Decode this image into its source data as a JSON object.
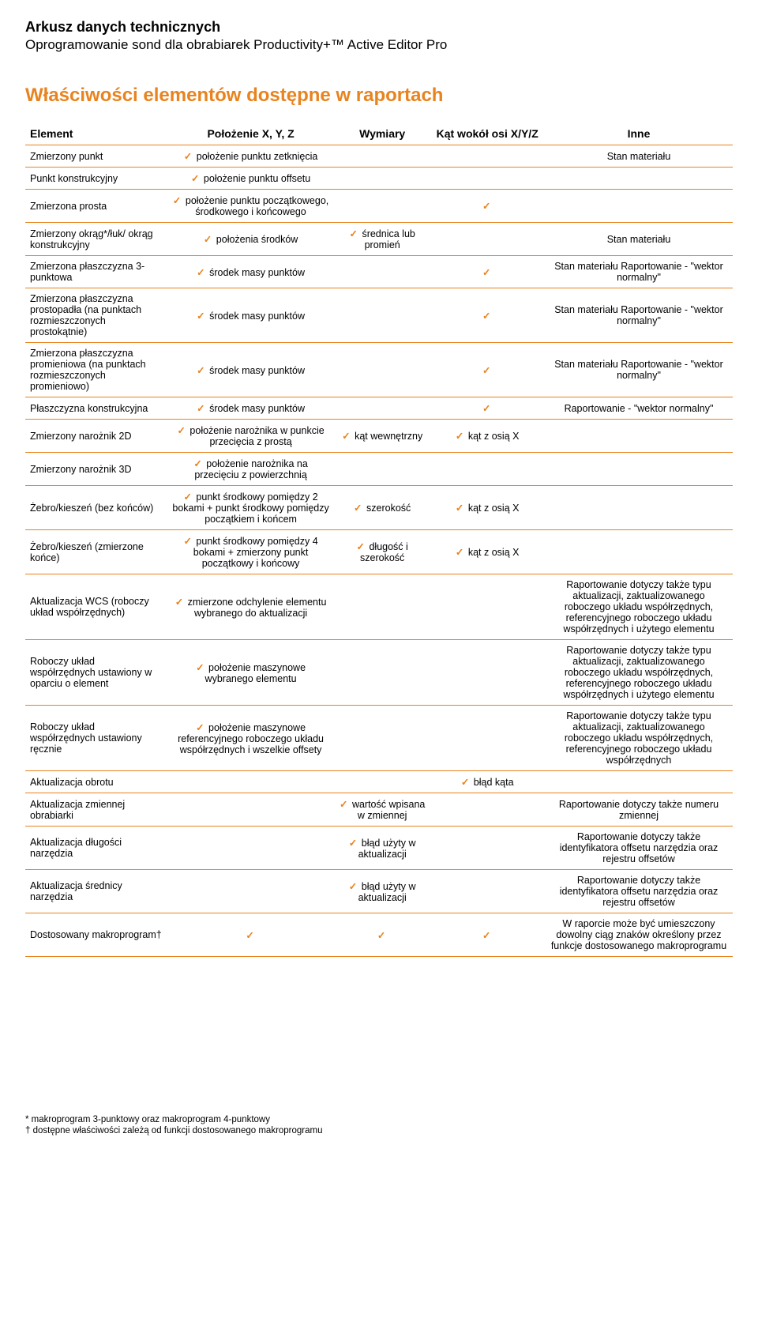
{
  "header": {
    "title": "Arkusz danych technicznych",
    "subtitle": "Oprogramowanie sond dla obrabiarek Productivity+™ Active Editor Pro"
  },
  "section_title": "Właściwości elementów dostępne w raportach",
  "columns": [
    "Element",
    "Położenie X, Y, Z",
    "Wymiary",
    "Kąt wokół osi X/Y/Z",
    "Inne"
  ],
  "check_color": "#e8831e",
  "rows": [
    {
      "element": "Zmierzony punkt",
      "position": {
        "check": true,
        "text": "położenie punktu zetknięcia"
      },
      "dimensions": null,
      "angle": null,
      "other": {
        "text": "Stan materiału"
      }
    },
    {
      "element": "Punkt konstrukcyjny",
      "position": {
        "check": true,
        "text": "położenie punktu offsetu"
      },
      "dimensions": null,
      "angle": null,
      "other": null
    },
    {
      "element": "Zmierzona prosta",
      "position": {
        "check": true,
        "text": "położenie punktu początkowego, środkowego i końcowego"
      },
      "dimensions": null,
      "angle": {
        "check": true
      },
      "other": null
    },
    {
      "element": "Zmierzony okrąg*/łuk/ okrąg konstrukcyjny",
      "position": {
        "check": true,
        "text": "położenia środków"
      },
      "dimensions": {
        "check": true,
        "text": "średnica lub promień"
      },
      "angle": null,
      "other": {
        "text": "Stan materiału"
      }
    },
    {
      "element": "Zmierzona płaszczyzna 3-punktowa",
      "position": {
        "check": true,
        "text": "środek masy punktów"
      },
      "dimensions": null,
      "angle": {
        "check": true
      },
      "other": {
        "text": "Stan materiału Raportowanie - \"wektor normalny\""
      }
    },
    {
      "element": "Zmierzona płaszczyzna prostopadła (na punktach rozmieszczonych prostokątnie)",
      "position": {
        "check": true,
        "text": "środek masy punktów"
      },
      "dimensions": null,
      "angle": {
        "check": true
      },
      "other": {
        "text": "Stan materiału Raportowanie - \"wektor normalny\""
      }
    },
    {
      "element": "Zmierzona płaszczyzna promieniowa (na punktach rozmieszczonych promieniowo)",
      "position": {
        "check": true,
        "text": "środek masy punktów"
      },
      "dimensions": null,
      "angle": {
        "check": true
      },
      "other": {
        "text": "Stan materiału Raportowanie - \"wektor normalny\""
      }
    },
    {
      "element": "Płaszczyzna konstrukcyjna",
      "position": {
        "check": true,
        "text": "środek masy punktów"
      },
      "dimensions": null,
      "angle": {
        "check": true
      },
      "other": {
        "text": "Raportowanie - \"wektor normalny\""
      }
    },
    {
      "element": "Zmierzony narożnik 2D",
      "position": {
        "check": true,
        "text": "położenie narożnika w punkcie przecięcia z prostą"
      },
      "dimensions": {
        "check": true,
        "text": "kąt wewnętrzny"
      },
      "angle": {
        "check": true,
        "text": "kąt z osią X"
      },
      "other": null
    },
    {
      "element": "Zmierzony narożnik 3D",
      "position": {
        "check": true,
        "text": "położenie narożnika na przecięciu z powierzchnią"
      },
      "dimensions": null,
      "angle": null,
      "other": null
    },
    {
      "element": "Żebro/kieszeń (bez końców)",
      "position": {
        "check": true,
        "text": "punkt środkowy pomiędzy 2 bokami + punkt środkowy pomiędzy początkiem i końcem"
      },
      "dimensions": {
        "check": true,
        "text": "szerokość"
      },
      "angle": {
        "check": true,
        "text": "kąt z osią X"
      },
      "other": null
    },
    {
      "element": "Żebro/kieszeń (zmierzone końce)",
      "position": {
        "check": true,
        "text": "punkt środkowy pomiędzy 4 bokami + zmierzony punkt początkowy i końcowy"
      },
      "dimensions": {
        "check": true,
        "text": "długość i szerokość"
      },
      "angle": {
        "check": true,
        "text": "kąt z osią X"
      },
      "other": null
    },
    {
      "element": "Aktualizacja WCS (roboczy układ współrzędnych)",
      "position": {
        "check": true,
        "text": "zmierzone odchylenie elementu wybranego do aktualizacji"
      },
      "dimensions": null,
      "angle": null,
      "other": {
        "text": "Raportowanie dotyczy także typu aktualizacji, zaktualizowanego roboczego układu współrzędnych, referencyjnego roboczego układu współrzędnych i użytego elementu"
      }
    },
    {
      "element": "Roboczy układ współrzędnych ustawiony w oparciu o element",
      "position": {
        "check": true,
        "text": "położenie maszynowe wybranego elementu"
      },
      "dimensions": null,
      "angle": null,
      "other": {
        "text": "Raportowanie dotyczy także typu aktualizacji, zaktualizowanego roboczego układu współrzędnych, referencyjnego roboczego układu współrzędnych i użytego elementu"
      }
    },
    {
      "element": "Roboczy układ współrzędnych ustawiony ręcznie",
      "position": {
        "check": true,
        "text": "położenie maszynowe referencyjnego roboczego układu współrzędnych i wszelkie offsety"
      },
      "dimensions": null,
      "angle": null,
      "other": {
        "text": "Raportowanie dotyczy także typu aktualizacji, zaktualizowanego roboczego układu współrzędnych, referencyjnego roboczego układu współrzędnych"
      }
    },
    {
      "element": "Aktualizacja obrotu",
      "position": null,
      "dimensions": null,
      "angle": {
        "check": true,
        "text": "błąd kąta"
      },
      "other": null
    },
    {
      "element": "Aktualizacja zmiennej obrabiarki",
      "position": null,
      "dimensions": {
        "check": true,
        "text": "wartość wpisana w zmiennej"
      },
      "angle": null,
      "other": {
        "text": "Raportowanie dotyczy także numeru zmiennej"
      }
    },
    {
      "element": "Aktualizacja długości narzędzia",
      "position": null,
      "dimensions": {
        "check": true,
        "text": "błąd użyty w aktualizacji"
      },
      "angle": null,
      "other": {
        "text": "Raportowanie dotyczy także identyfikatora offsetu narzędzia oraz rejestru offsetów"
      }
    },
    {
      "element": "Aktualizacja średnicy narzędzia",
      "position": null,
      "dimensions": {
        "check": true,
        "text": "błąd użyty w aktualizacji"
      },
      "angle": null,
      "other": {
        "text": "Raportowanie dotyczy także identyfikatora offsetu narzędzia oraz rejestru offsetów"
      }
    },
    {
      "element": "Dostosowany makroprogram†",
      "position": {
        "check": true
      },
      "dimensions": {
        "check": true
      },
      "angle": {
        "check": true
      },
      "other": {
        "text": "W raporcie może być umieszczony dowolny ciąg znaków określony przez funkcje dostosowanego makroprogramu"
      }
    }
  ],
  "footnotes": [
    "* makroprogram 3-punktowy oraz makroprogram 4-punktowy",
    "† dostępne właściwości zależą od funkcji dostosowanego makroprogramu"
  ]
}
